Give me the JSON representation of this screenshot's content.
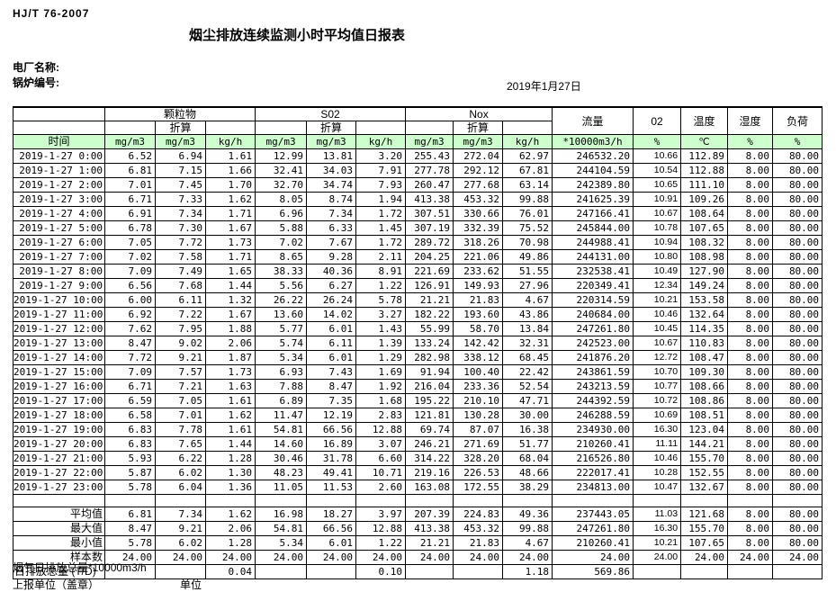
{
  "page": {
    "standard_code": "HJ/T  76-2007",
    "title": "烟尘排放连续监测小时平均值日报表",
    "plant_label": "电厂名称:",
    "boiler_label": "锅炉编号:",
    "date": "2019年1月27日",
    "footer_flue_total": "烟气日排放总量*10000m3/h",
    "footer_report_unit": "上报单位（盖章）",
    "footer_unit": "单位",
    "accent_green": "#ccffcc"
  },
  "table": {
    "time_header": "时间",
    "conv_label": "折算",
    "groups": {
      "pm": "颗粒物",
      "so2": "S02",
      "nox": "Nox",
      "flow": "流量",
      "o2": "02",
      "temp": "温度",
      "humidity": "湿度",
      "load": "负荷"
    },
    "units": [
      "mg/m3",
      "mg/m3",
      "kg/h",
      "mg/m3",
      "mg/m3",
      "kg/h",
      "mg/m3",
      "mg/m3",
      "kg/h",
      "*10000m3/h",
      "%",
      "℃",
      "%",
      "%"
    ],
    "rows": [
      [
        "2019-1-27 0:00",
        "6.52",
        "6.94",
        "1.61",
        "12.99",
        "13.81",
        "3.20",
        "255.43",
        "272.04",
        "62.97",
        "246532.20",
        "10.66",
        "112.89",
        "8.00",
        "80.00"
      ],
      [
        "2019-1-27 1:00",
        "6.81",
        "7.15",
        "1.66",
        "32.41",
        "34.03",
        "7.91",
        "277.78",
        "292.12",
        "67.81",
        "244104.59",
        "10.54",
        "112.88",
        "8.00",
        "80.00"
      ],
      [
        "2019-1-27 2:00",
        "7.01",
        "7.45",
        "1.70",
        "32.70",
        "34.74",
        "7.93",
        "260.47",
        "277.68",
        "63.14",
        "242389.80",
        "10.65",
        "111.10",
        "8.00",
        "80.00"
      ],
      [
        "2019-1-27 3:00",
        "6.71",
        "7.33",
        "1.62",
        "8.05",
        "8.74",
        "1.94",
        "413.38",
        "453.32",
        "99.88",
        "241625.39",
        "10.91",
        "109.26",
        "8.00",
        "80.00"
      ],
      [
        "2019-1-27 4:00",
        "6.91",
        "7.34",
        "1.71",
        "6.96",
        "7.34",
        "1.72",
        "307.51",
        "330.66",
        "76.01",
        "247166.41",
        "10.67",
        "108.64",
        "8.00",
        "80.00"
      ],
      [
        "2019-1-27 5:00",
        "6.78",
        "7.30",
        "1.67",
        "5.88",
        "6.33",
        "1.45",
        "307.19",
        "332.39",
        "75.52",
        "245844.00",
        "10.78",
        "107.65",
        "8.00",
        "80.00"
      ],
      [
        "2019-1-27 6:00",
        "7.05",
        "7.72",
        "1.73",
        "7.02",
        "7.67",
        "1.72",
        "289.72",
        "318.26",
        "70.98",
        "244988.41",
        "10.94",
        "108.32",
        "8.00",
        "80.00"
      ],
      [
        "2019-1-27 7:00",
        "7.02",
        "7.58",
        "1.71",
        "8.65",
        "9.28",
        "2.11",
        "204.25",
        "221.06",
        "49.86",
        "244131.00",
        "10.80",
        "108.98",
        "8.00",
        "80.00"
      ],
      [
        "2019-1-27 8:00",
        "7.09",
        "7.49",
        "1.65",
        "38.33",
        "40.36",
        "8.91",
        "221.69",
        "233.62",
        "51.55",
        "232538.41",
        "10.49",
        "127.90",
        "8.00",
        "80.00"
      ],
      [
        "2019-1-27 9:00",
        "6.56",
        "7.68",
        "1.44",
        "5.56",
        "6.27",
        "1.22",
        "126.91",
        "149.93",
        "27.96",
        "220349.41",
        "12.34",
        "149.24",
        "8.00",
        "80.00"
      ],
      [
        "2019-1-27 10:00",
        "6.00",
        "6.11",
        "1.32",
        "26.22",
        "26.24",
        "5.78",
        "21.21",
        "21.83",
        "4.67",
        "220314.59",
        "10.21",
        "153.58",
        "8.00",
        "80.00"
      ],
      [
        "2019-1-27 11:00",
        "6.92",
        "7.22",
        "1.67",
        "13.60",
        "14.02",
        "3.27",
        "182.22",
        "193.60",
        "43.86",
        "240684.00",
        "10.46",
        "132.64",
        "8.00",
        "80.00"
      ],
      [
        "2019-1-27 12:00",
        "7.62",
        "7.95",
        "1.88",
        "5.77",
        "6.01",
        "1.43",
        "55.99",
        "58.70",
        "13.84",
        "247261.80",
        "10.45",
        "114.35",
        "8.00",
        "80.00"
      ],
      [
        "2019-1-27 13:00",
        "8.47",
        "9.02",
        "2.06",
        "5.74",
        "6.11",
        "1.39",
        "133.24",
        "142.42",
        "32.31",
        "242523.00",
        "10.67",
        "110.83",
        "8.00",
        "80.00"
      ],
      [
        "2019-1-27 14:00",
        "7.72",
        "9.21",
        "1.87",
        "5.34",
        "6.01",
        "1.29",
        "282.98",
        "338.12",
        "68.45",
        "241876.20",
        "12.72",
        "108.47",
        "8.00",
        "80.00"
      ],
      [
        "2019-1-27 15:00",
        "7.09",
        "7.57",
        "1.73",
        "6.93",
        "7.43",
        "1.69",
        "91.94",
        "100.40",
        "22.42",
        "243861.59",
        "10.70",
        "109.30",
        "8.00",
        "80.00"
      ],
      [
        "2019-1-27 16:00",
        "6.71",
        "7.21",
        "1.63",
        "7.88",
        "8.47",
        "1.92",
        "216.04",
        "233.36",
        "52.54",
        "243213.59",
        "10.77",
        "108.66",
        "8.00",
        "80.00"
      ],
      [
        "2019-1-27 17:00",
        "6.59",
        "7.05",
        "1.61",
        "6.89",
        "7.35",
        "1.68",
        "195.22",
        "210.10",
        "47.71",
        "244392.59",
        "10.72",
        "108.86",
        "8.00",
        "80.00"
      ],
      [
        "2019-1-27 18:00",
        "6.58",
        "7.01",
        "1.62",
        "11.47",
        "12.19",
        "2.83",
        "121.81",
        "130.28",
        "30.00",
        "246288.59",
        "10.69",
        "108.51",
        "8.00",
        "80.00"
      ],
      [
        "2019-1-27 19:00",
        "6.83",
        "7.78",
        "1.61",
        "54.81",
        "66.56",
        "12.88",
        "69.74",
        "87.07",
        "16.38",
        "234930.00",
        "16.30",
        "123.04",
        "8.00",
        "80.00"
      ],
      [
        "2019-1-27 20:00",
        "6.83",
        "7.65",
        "1.44",
        "14.60",
        "16.89",
        "3.07",
        "246.21",
        "271.69",
        "51.77",
        "210260.41",
        "11.11",
        "144.21",
        "8.00",
        "80.00"
      ],
      [
        "2019-1-27 21:00",
        "5.93",
        "6.22",
        "1.28",
        "30.46",
        "31.78",
        "6.60",
        "314.22",
        "328.20",
        "68.04",
        "216526.80",
        "10.46",
        "155.70",
        "8.00",
        "80.00"
      ],
      [
        "2019-1-27 22:00",
        "5.87",
        "6.02",
        "1.30",
        "48.23",
        "49.41",
        "10.71",
        "219.16",
        "226.53",
        "48.66",
        "222017.41",
        "10.28",
        "152.55",
        "8.00",
        "80.00"
      ],
      [
        "2019-1-27 23:00",
        "5.78",
        "6.04",
        "1.36",
        "11.05",
        "11.53",
        "2.60",
        "163.08",
        "172.55",
        "38.29",
        "234813.00",
        "10.47",
        "132.67",
        "8.00",
        "80.00"
      ]
    ],
    "summary_rows": [
      [
        "平均值",
        "6.81",
        "7.34",
        "1.62",
        "16.98",
        "18.27",
        "3.97",
        "207.39",
        "224.83",
        "49.36",
        "237443.05",
        "11.03",
        "121.68",
        "8.00",
        "80.00"
      ],
      [
        "最大值",
        "8.47",
        "9.21",
        "2.06",
        "54.81",
        "66.56",
        "12.88",
        "413.38",
        "453.32",
        "99.88",
        "247261.80",
        "16.30",
        "155.70",
        "8.00",
        "80.00"
      ],
      [
        "最小值",
        "5.78",
        "6.02",
        "1.28",
        "5.34",
        "6.01",
        "1.22",
        "21.21",
        "21.83",
        "4.67",
        "210260.41",
        "10.21",
        "107.65",
        "8.00",
        "80.00"
      ],
      [
        "样本数",
        "24.00",
        "24.00",
        "24.00",
        "24.00",
        "24.00",
        "24.00",
        "24.00",
        "24.00",
        "24.00",
        "24.00",
        "24.00",
        "24.00",
        "24.00",
        "24.00"
      ]
    ],
    "daily_total_row": [
      "日排放总量 (T/D)",
      "",
      "",
      "0.04",
      "",
      "",
      "0.10",
      "",
      "",
      "1.18",
      "569.86",
      "",
      "",
      "",
      ""
    ]
  }
}
